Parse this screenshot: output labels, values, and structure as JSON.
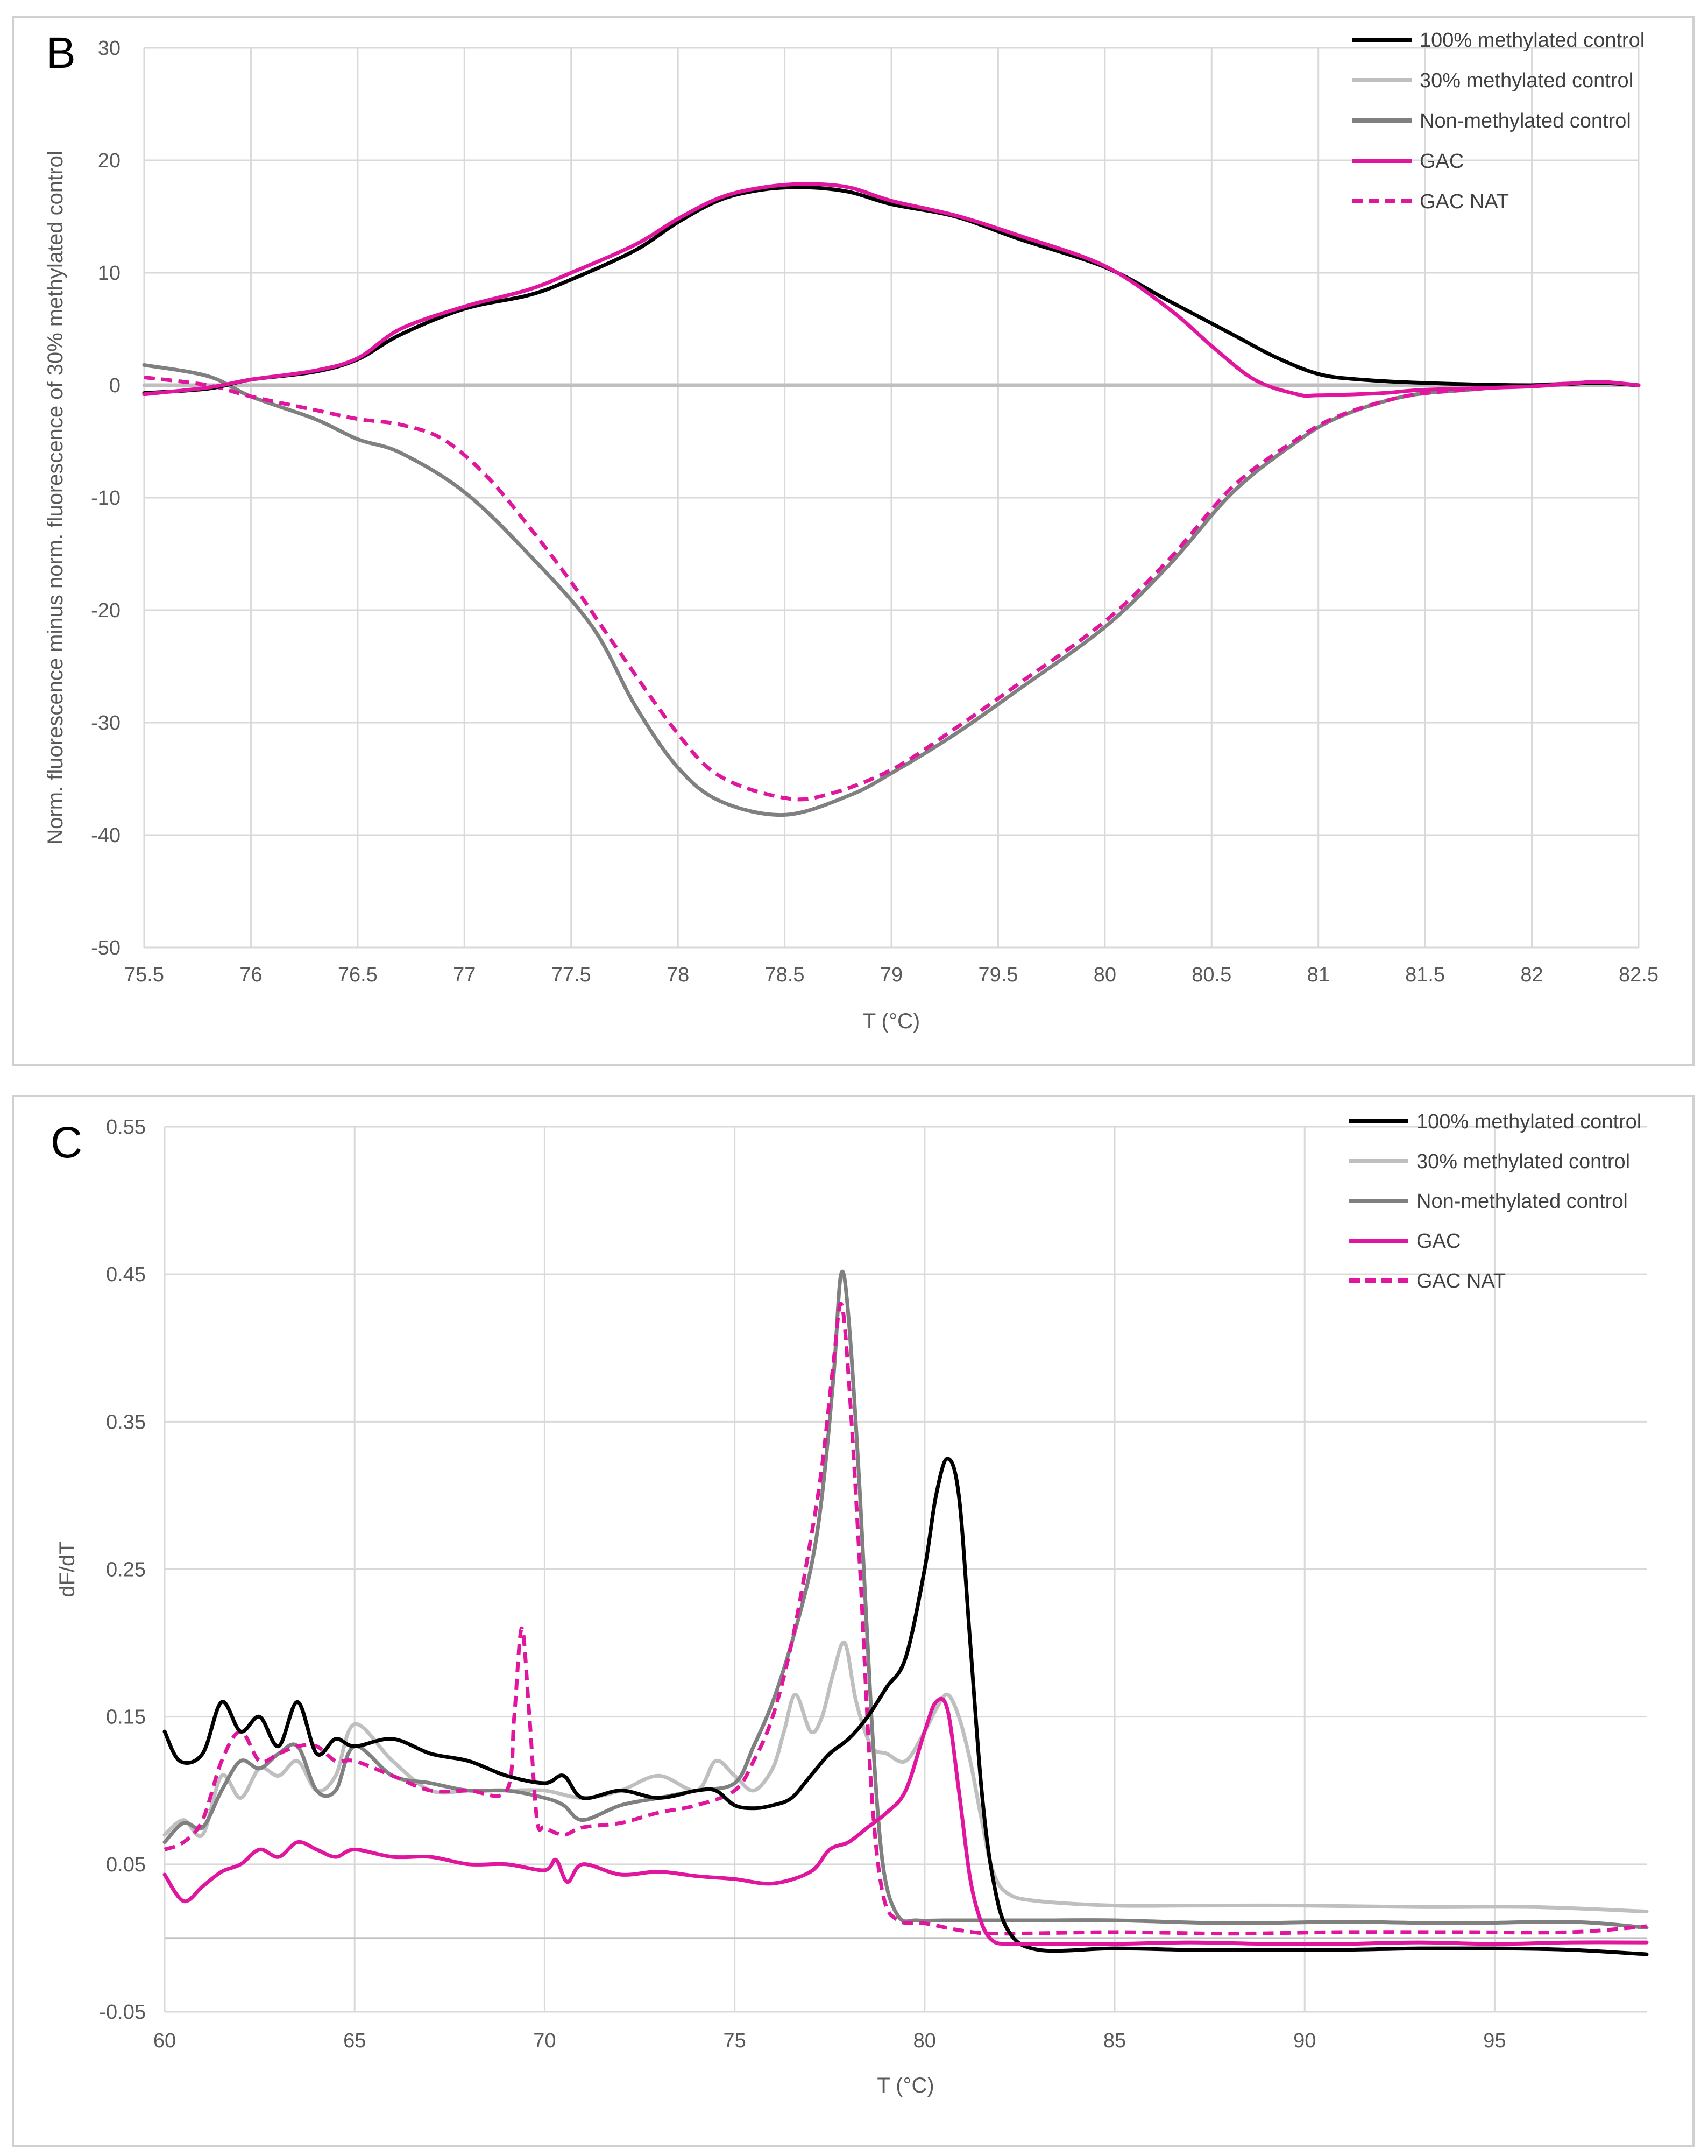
{
  "colors": {
    "m100": "#000000",
    "m30": "#bfbfbf",
    "m0": "#808080",
    "gac": "#e0169e",
    "grid": "#d9d9d9",
    "zero": "#bfbfbf"
  },
  "chart_data": [
    {
      "panel": "B",
      "type": "line",
      "xlabel": "T (°C)",
      "ylabel": "Norm. fluorescence minus norm. fluorescence of 30% methylated control",
      "xlim": [
        75.5,
        82.5
      ],
      "ylim": [
        -50,
        30
      ],
      "xticks": [
        "75.5",
        "76",
        "76.5",
        "77",
        "77.5",
        "78",
        "78.5",
        "79",
        "79.5",
        "80",
        "80.5",
        "81",
        "81.5",
        "82",
        "82.5"
      ],
      "yticks": [
        "30",
        "20",
        "10",
        "0",
        "-10",
        "-20",
        "-30",
        "-40",
        "-50"
      ],
      "legend": "top-right",
      "series": [
        {
          "key": "m100",
          "name": "100% methylated control",
          "color": "m100",
          "dash": false,
          "x": [
            75.5,
            75.8,
            76,
            76.3,
            76.5,
            76.7,
            77,
            77.3,
            77.5,
            77.8,
            78,
            78.2,
            78.4,
            78.6,
            78.8,
            79,
            79.3,
            79.6,
            80,
            80.3,
            80.6,
            80.8,
            81,
            81.2,
            81.5,
            82,
            82.3,
            82.5
          ],
          "y": [
            -0.7,
            -0.3,
            0.5,
            1.2,
            2.3,
            4.5,
            6.8,
            8.0,
            9.4,
            12.0,
            14.5,
            16.5,
            17.4,
            17.6,
            17.2,
            16.1,
            15.0,
            13.0,
            10.5,
            7.5,
            4.5,
            2.5,
            1.0,
            0.5,
            0.2,
            0,
            0.2,
            0
          ]
        },
        {
          "key": "m30",
          "name": "30% methylated control",
          "color": "m30",
          "dash": false,
          "x": [
            75.5,
            82.5
          ],
          "y": [
            0,
            0
          ]
        },
        {
          "key": "m0",
          "name": "Non-methylated control",
          "color": "m0",
          "dash": false,
          "x": [
            75.5,
            75.8,
            76,
            76.3,
            76.5,
            76.7,
            77,
            77.3,
            77.6,
            77.8,
            78,
            78.2,
            78.5,
            78.8,
            79,
            79.3,
            79.6,
            80,
            80.3,
            80.6,
            80.9,
            81.1,
            81.4,
            81.7,
            82,
            82.3,
            82.5
          ],
          "y": [
            1.8,
            0.8,
            -1.0,
            -3.0,
            -4.8,
            -6.0,
            -9.5,
            -15.0,
            -21.5,
            -28.5,
            -34.0,
            -37.0,
            -38.2,
            -36.5,
            -34.5,
            -31.0,
            -27.0,
            -21.5,
            -16.0,
            -9.5,
            -5.0,
            -2.8,
            -1.0,
            -0.4,
            0,
            0.2,
            0
          ]
        },
        {
          "key": "gac",
          "name": "GAC",
          "color": "gac",
          "dash": false,
          "x": [
            75.5,
            75.8,
            76,
            76.3,
            76.5,
            76.7,
            77,
            77.3,
            77.5,
            77.8,
            78,
            78.2,
            78.4,
            78.6,
            78.8,
            79,
            79.3,
            79.6,
            80,
            80.3,
            80.5,
            80.7,
            80.9,
            81,
            81.3,
            81.5,
            82,
            82.3,
            82.5
          ],
          "y": [
            -0.8,
            -0.2,
            0.5,
            1.3,
            2.4,
            5.0,
            7.0,
            8.5,
            10.0,
            12.5,
            14.8,
            16.7,
            17.6,
            17.9,
            17.6,
            16.4,
            15.1,
            13.3,
            10.6,
            6.8,
            3.5,
            0.5,
            -0.8,
            -0.9,
            -0.7,
            -0.4,
            -0.1,
            0.3,
            0
          ]
        },
        {
          "key": "gacnat",
          "name": "GAC NAT",
          "color": "gac",
          "dash": true,
          "x": [
            75.5,
            75.8,
            76,
            76.3,
            76.5,
            76.7,
            76.9,
            77.1,
            77.3,
            77.5,
            77.7,
            78,
            78.2,
            78.5,
            78.7,
            79,
            79.3,
            79.6,
            80,
            80.3,
            80.6,
            80.9,
            81.1,
            81.4,
            81.7,
            82,
            82.3,
            82.5
          ],
          "y": [
            0.7,
            0,
            -1.0,
            -2.2,
            -3.0,
            -3.5,
            -4.8,
            -8.0,
            -12.5,
            -17.5,
            -23.0,
            -31.0,
            -34.8,
            -36.7,
            -36.4,
            -34.2,
            -30.5,
            -26.5,
            -21.0,
            -15.5,
            -9.0,
            -4.8,
            -2.7,
            -1.0,
            -0.4,
            0,
            0.2,
            0
          ]
        }
      ]
    },
    {
      "panel": "C",
      "type": "line",
      "xlabel": "T (°C)",
      "ylabel": "dF/dT",
      "xlim": [
        60,
        99
      ],
      "ylim": [
        -0.05,
        0.55
      ],
      "xticks": [
        "60",
        "65",
        "70",
        "75",
        "80",
        "85",
        "90",
        "95"
      ],
      "yticks": [
        "0.55",
        "0.45",
        "0.35",
        "0.25",
        "0.15",
        "0.05",
        "-0.05"
      ],
      "legend": "top-right",
      "series": [
        {
          "key": "m100",
          "name": "100% methylated control",
          "color": "m100",
          "dash": false,
          "x": [
            60,
            60.4,
            61,
            61.5,
            62,
            62.5,
            63,
            63.5,
            64,
            64.5,
            65,
            66,
            67,
            68,
            69,
            70,
            70.5,
            71,
            72,
            73,
            74,
            74.5,
            75,
            75.5,
            76,
            76.5,
            77,
            77.5,
            78,
            78.5,
            79,
            79.5,
            80,
            80.3,
            80.6,
            80.9,
            81.2,
            81.5,
            81.8,
            82.2,
            83,
            85,
            87,
            89,
            91,
            93,
            95,
            97,
            99
          ],
          "y": [
            0.14,
            0.12,
            0.125,
            0.16,
            0.14,
            0.15,
            0.13,
            0.16,
            0.125,
            0.135,
            0.13,
            0.135,
            0.125,
            0.12,
            0.11,
            0.105,
            0.11,
            0.095,
            0.1,
            0.095,
            0.1,
            0.1,
            0.09,
            0.088,
            0.09,
            0.095,
            0.11,
            0.125,
            0.135,
            0.15,
            0.17,
            0.19,
            0.25,
            0.3,
            0.325,
            0.3,
            0.2,
            0.1,
            0.04,
            0.005,
            -0.008,
            -0.007,
            -0.008,
            -0.008,
            -0.008,
            -0.007,
            -0.007,
            -0.008,
            -0.011
          ]
        },
        {
          "key": "m30",
          "name": "30% methylated control",
          "color": "m30",
          "dash": false,
          "x": [
            60,
            60.5,
            61,
            61.5,
            62,
            62.5,
            63,
            63.5,
            64,
            64.5,
            65,
            66,
            67,
            68,
            69,
            70,
            71,
            72,
            73,
            74,
            74.5,
            75,
            75.5,
            76,
            76.3,
            76.6,
            77,
            77.3,
            77.6,
            77.9,
            78.2,
            78.6,
            79,
            79.5,
            80,
            80.3,
            80.6,
            80.9,
            81.2,
            81.5,
            81.8,
            82.2,
            83,
            85,
            87,
            90,
            93,
            96,
            99
          ],
          "y": [
            0.07,
            0.08,
            0.07,
            0.11,
            0.095,
            0.115,
            0.11,
            0.12,
            0.1,
            0.11,
            0.145,
            0.12,
            0.1,
            0.1,
            0.1,
            0.1,
            0.095,
            0.1,
            0.11,
            0.1,
            0.12,
            0.11,
            0.1,
            0.115,
            0.14,
            0.165,
            0.14,
            0.15,
            0.18,
            0.2,
            0.16,
            0.13,
            0.125,
            0.12,
            0.14,
            0.155,
            0.165,
            0.15,
            0.12,
            0.08,
            0.045,
            0.03,
            0.025,
            0.022,
            0.022,
            0.022,
            0.021,
            0.021,
            0.018
          ]
        },
        {
          "key": "m0",
          "name": "Non-methylated control",
          "color": "m0",
          "dash": false,
          "x": [
            60,
            60.5,
            61,
            61.5,
            62,
            62.5,
            63,
            63.5,
            64,
            64.5,
            65,
            66,
            67,
            68,
            69,
            70,
            70.5,
            71,
            72,
            73,
            74,
            75,
            75.5,
            76,
            76.5,
            77,
            77.3,
            77.6,
            77.8,
            78,
            78.3,
            78.6,
            78.9,
            79.3,
            79.8,
            80.5,
            81.5,
            83,
            85,
            88,
            91,
            94,
            97,
            99
          ],
          "y": [
            0.065,
            0.078,
            0.075,
            0.1,
            0.12,
            0.115,
            0.125,
            0.13,
            0.1,
            0.1,
            0.13,
            0.11,
            0.105,
            0.1,
            0.1,
            0.095,
            0.09,
            0.08,
            0.09,
            0.095,
            0.1,
            0.105,
            0.13,
            0.16,
            0.2,
            0.25,
            0.3,
            0.38,
            0.45,
            0.42,
            0.3,
            0.15,
            0.05,
            0.015,
            0.012,
            0.012,
            0.012,
            0.012,
            0.012,
            0.01,
            0.011,
            0.01,
            0.011,
            0.007
          ]
        },
        {
          "key": "gac",
          "name": "GAC",
          "color": "gac",
          "dash": false,
          "x": [
            60,
            60.5,
            61,
            61.5,
            62,
            62.5,
            63,
            63.5,
            64,
            64.5,
            65,
            66,
            67,
            68,
            69,
            70,
            70.3,
            70.6,
            71,
            72,
            73,
            74,
            75,
            76,
            77,
            77.5,
            78,
            78.5,
            79,
            79.5,
            80,
            80.3,
            80.6,
            80.9,
            81.2,
            81.5,
            81.8,
            82.2,
            83,
            85,
            87,
            89,
            91,
            93,
            95,
            97,
            99
          ],
          "y": [
            0.043,
            0.025,
            0.035,
            0.045,
            0.05,
            0.06,
            0.055,
            0.065,
            0.06,
            0.055,
            0.06,
            0.055,
            0.055,
            0.05,
            0.05,
            0.046,
            0.053,
            0.038,
            0.05,
            0.043,
            0.045,
            0.042,
            0.04,
            0.037,
            0.045,
            0.06,
            0.065,
            0.075,
            0.085,
            0.1,
            0.14,
            0.16,
            0.155,
            0.1,
            0.04,
            0.01,
            -0.002,
            -0.004,
            -0.004,
            -0.004,
            -0.003,
            -0.004,
            -0.004,
            -0.003,
            -0.004,
            -0.003,
            -0.003
          ]
        },
        {
          "key": "gacnat",
          "name": "GAC NAT",
          "color": "gac",
          "dash": true,
          "x": [
            60,
            60.5,
            61,
            61.5,
            62,
            62.5,
            63,
            63.5,
            64,
            64.5,
            65,
            66,
            67,
            68,
            69,
            69.2,
            69.4,
            69.6,
            69.8,
            70,
            70.5,
            71,
            72,
            73,
            74,
            75,
            75.5,
            76,
            76.5,
            77,
            77.3,
            77.6,
            77.8,
            78,
            78.3,
            78.6,
            78.9,
            79.3,
            80,
            81,
            82,
            85,
            88,
            91,
            94,
            97,
            99
          ],
          "y": [
            0.06,
            0.065,
            0.08,
            0.12,
            0.14,
            0.12,
            0.125,
            0.13,
            0.13,
            0.12,
            0.12,
            0.11,
            0.1,
            0.1,
            0.1,
            0.15,
            0.21,
            0.15,
            0.08,
            0.075,
            0.07,
            0.075,
            0.078,
            0.085,
            0.09,
            0.1,
            0.12,
            0.15,
            0.2,
            0.27,
            0.32,
            0.39,
            0.43,
            0.38,
            0.25,
            0.1,
            0.03,
            0.012,
            0.01,
            0.005,
            0.003,
            0.004,
            0.003,
            0.004,
            0.004,
            0.004,
            0.008
          ]
        }
      ]
    }
  ],
  "panels": {
    "B": {
      "letter": "B"
    },
    "C": {
      "letter": "C"
    }
  }
}
